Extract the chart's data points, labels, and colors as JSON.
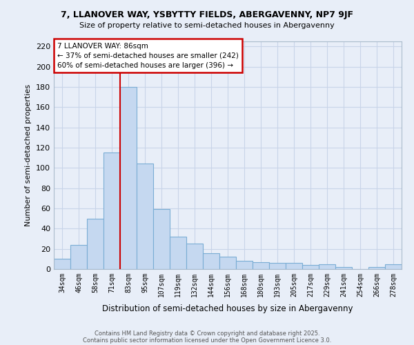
{
  "title_line1": "7, LLANOVER WAY, YSBYTTY FIELDS, ABERGAVENNY, NP7 9JF",
  "title_line2": "Size of property relative to semi-detached houses in Abergavenny",
  "xlabel": "Distribution of semi-detached houses by size in Abergavenny",
  "ylabel": "Number of semi-detached properties",
  "categories": [
    "34sqm",
    "46sqm",
    "58sqm",
    "71sqm",
    "83sqm",
    "95sqm",
    "107sqm",
    "119sqm",
    "132sqm",
    "144sqm",
    "156sqm",
    "168sqm",
    "180sqm",
    "193sqm",
    "205sqm",
    "217sqm",
    "229sqm",
    "241sqm",
    "254sqm",
    "266sqm",
    "278sqm"
  ],
  "values": [
    10,
    24,
    50,
    115,
    180,
    104,
    59,
    32,
    25,
    16,
    12,
    8,
    7,
    6,
    6,
    4,
    5,
    2,
    0,
    2,
    5
  ],
  "bar_color": "#c5d8f0",
  "bar_edge_color": "#7aadd4",
  "property_bin_index": 4,
  "pct_smaller": 37,
  "count_smaller": 242,
  "pct_larger": 60,
  "count_larger": 396,
  "annotation_box_color": "#ffffff",
  "annotation_box_edge": "#cc0000",
  "vline_color": "#cc0000",
  "ylim": [
    0,
    225
  ],
  "yticks": [
    0,
    20,
    40,
    60,
    80,
    100,
    120,
    140,
    160,
    180,
    200,
    220
  ],
  "footer_line1": "Contains HM Land Registry data © Crown copyright and database right 2025.",
  "footer_line2": "Contains public sector information licensed under the Open Government Licence 3.0.",
  "bg_color": "#e8eef8",
  "grid_color": "#c8d4e8"
}
